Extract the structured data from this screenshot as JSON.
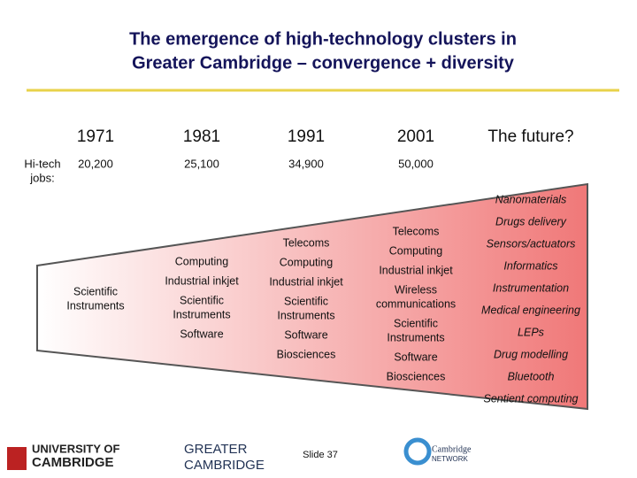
{
  "header": {
    "title_lines": [
      "The emergence of high-technology clusters in",
      "Greater Cambridge – convergence + diversity"
    ]
  },
  "jobs_label": [
    "Hi-tech",
    "jobs:"
  ],
  "columns": [
    {
      "period": "1971",
      "jobs": "20,200",
      "items": [
        [
          "Scientific",
          "Instruments"
        ]
      ]
    },
    {
      "period": "1981",
      "jobs": "25,100",
      "items": [
        [
          "Computing"
        ],
        [
          "Industrial inkjet"
        ],
        [
          "Scientific",
          "Instruments"
        ],
        [
          "Software"
        ]
      ]
    },
    {
      "period": "1991",
      "jobs": "34,900",
      "items": [
        [
          "Telecoms"
        ],
        [
          "Computing"
        ],
        [
          "Industrial inkjet"
        ],
        [
          "Scientific",
          "Instruments"
        ],
        [
          "Software"
        ],
        [
          "Biosciences"
        ]
      ]
    },
    {
      "period": "2001",
      "jobs": "50,000",
      "items": [
        [
          "Telecoms"
        ],
        [
          "Computing"
        ],
        [
          "Industrial inkjet"
        ],
        [
          "Wireless",
          "communications"
        ],
        [
          "Scientific",
          "Instruments"
        ],
        [
          "Software"
        ],
        [
          "Biosciences"
        ]
      ]
    },
    {
      "period": "The future?",
      "items": [
        [
          "Nanomaterials"
        ],
        [
          "Drugs delivery"
        ],
        [
          "Sensors/actuators"
        ],
        [
          "Informatics"
        ],
        [
          "Instrumentation"
        ],
        [
          "Medical engineering"
        ],
        [
          "LEPs"
        ],
        [
          "Drug modelling"
        ],
        [
          "Bluetooth"
        ],
        [
          "Sentient computing"
        ]
      ]
    }
  ],
  "footer": {
    "logo1": [
      "UNIVERSITY OF",
      "CAMBRIDGE"
    ],
    "logo2": [
      "GREATER",
      "CAMBRIDGE"
    ],
    "slide": "Slide 37",
    "logo3": [
      "Cambridge",
      "NETWORK"
    ]
  }
}
